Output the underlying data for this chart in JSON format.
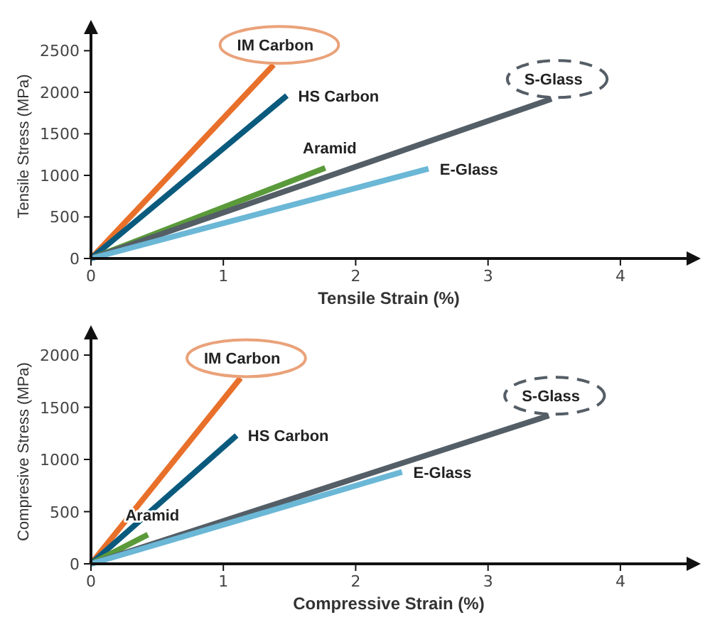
{
  "chart_data": [
    {
      "type": "line",
      "xlabel": "Tensile Strain (%)",
      "ylabel": "Tensile Stress (MPa)",
      "xlim": [
        0,
        4.5
      ],
      "ylim": [
        0,
        2700
      ],
      "xticks": [
        0,
        1,
        2,
        3,
        4
      ],
      "yticks": [
        0,
        500,
        1000,
        1500,
        2000,
        2500
      ],
      "grid": false,
      "marker": "none",
      "line_style": "solid",
      "series": [
        {
          "name": "IM Carbon",
          "color": "#e8702a",
          "x": [
            0,
            1.38
          ],
          "values": [
            0,
            2330
          ]
        },
        {
          "name": "HS Carbon",
          "color": "#0a5a7e",
          "x": [
            0,
            1.48
          ],
          "values": [
            0,
            1960
          ]
        },
        {
          "name": "Aramid",
          "color": "#5a9a3a",
          "x": [
            0,
            1.77
          ],
          "values": [
            0,
            1090
          ]
        },
        {
          "name": "S-Glass",
          "color": "#545e66",
          "x": [
            0,
            3.48
          ],
          "values": [
            0,
            1920
          ]
        },
        {
          "name": "E-Glass",
          "color": "#6bb7d6",
          "x": [
            0,
            2.55
          ],
          "values": [
            0,
            1080
          ]
        }
      ]
    },
    {
      "type": "line",
      "xlabel": "Compressive Strain (%)",
      "ylabel": "Compresive Stress (MPa)",
      "xlim": [
        0,
        4.5
      ],
      "ylim": [
        0,
        2150
      ],
      "xticks": [
        0,
        1,
        2,
        3,
        4
      ],
      "yticks": [
        0,
        500,
        1000,
        1500,
        2000
      ],
      "grid": false,
      "marker": "none",
      "line_style": "solid",
      "series": [
        {
          "name": "IM Carbon",
          "color": "#e8702a",
          "x": [
            0,
            1.13
          ],
          "values": [
            0,
            1780
          ]
        },
        {
          "name": "HS Carbon",
          "color": "#0a5a7e",
          "x": [
            0,
            1.1
          ],
          "values": [
            0,
            1230
          ]
        },
        {
          "name": "Aramid",
          "color": "#5a9a3a",
          "x": [
            0,
            0.43
          ],
          "values": [
            0,
            280
          ]
        },
        {
          "name": "S-Glass",
          "color": "#545e66",
          "x": [
            0,
            3.46
          ],
          "values": [
            0,
            1420
          ]
        },
        {
          "name": "E-Glass",
          "color": "#6bb7d6",
          "x": [
            0,
            2.35
          ],
          "values": [
            0,
            880
          ]
        }
      ]
    }
  ]
}
